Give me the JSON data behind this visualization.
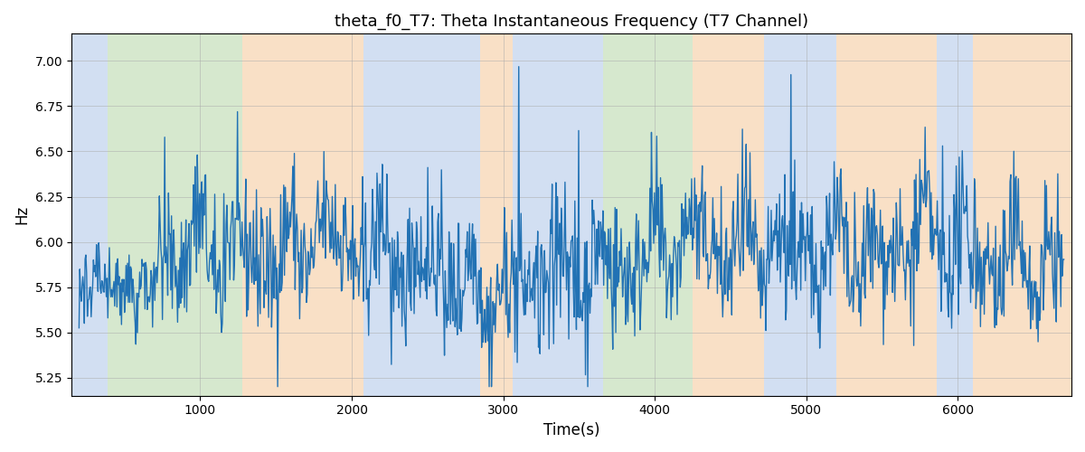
{
  "title": "theta_f0_T7: Theta Instantaneous Frequency (T7 Channel)",
  "xlabel": "Time(s)",
  "ylabel": "Hz",
  "ylim": [
    5.15,
    7.15
  ],
  "xlim": [
    150,
    6750
  ],
  "yticks": [
    5.25,
    5.5,
    5.75,
    6.0,
    6.25,
    6.5,
    6.75,
    7.0
  ],
  "xticks": [
    1000,
    2000,
    3000,
    4000,
    5000,
    6000
  ],
  "line_color": "#2272b4",
  "line_width": 1.0,
  "bg_color": "#ffffff",
  "grid_color": "#aaaaaa",
  "title_fontsize": 13,
  "label_fontsize": 12,
  "bands": [
    {
      "xmin": 150,
      "xmax": 390,
      "color": "#aec6e8",
      "alpha": 0.55
    },
    {
      "xmin": 390,
      "xmax": 1280,
      "color": "#b5d6a7",
      "alpha": 0.55
    },
    {
      "xmin": 1280,
      "xmax": 2080,
      "color": "#f5c897",
      "alpha": 0.55
    },
    {
      "xmin": 2080,
      "xmax": 2850,
      "color": "#aec6e8",
      "alpha": 0.55
    },
    {
      "xmin": 2850,
      "xmax": 3060,
      "color": "#f5c897",
      "alpha": 0.55
    },
    {
      "xmin": 3060,
      "xmax": 3420,
      "color": "#aec6e8",
      "alpha": 0.55
    },
    {
      "xmin": 3420,
      "xmax": 3550,
      "color": "#aec6e8",
      "alpha": 0.55
    },
    {
      "xmin": 3550,
      "xmax": 3660,
      "color": "#aec6e8",
      "alpha": 0.55
    },
    {
      "xmin": 3660,
      "xmax": 4250,
      "color": "#b5d6a7",
      "alpha": 0.55
    },
    {
      "xmin": 4250,
      "xmax": 4720,
      "color": "#f5c897",
      "alpha": 0.55
    },
    {
      "xmin": 4720,
      "xmax": 5200,
      "color": "#aec6e8",
      "alpha": 0.55
    },
    {
      "xmin": 5200,
      "xmax": 5860,
      "color": "#f5c897",
      "alpha": 0.55
    },
    {
      "xmin": 5860,
      "xmax": 6100,
      "color": "#aec6e8",
      "alpha": 0.55
    },
    {
      "xmin": 6100,
      "xmax": 6750,
      "color": "#f5c897",
      "alpha": 0.55
    }
  ],
  "seed": 42,
  "n_points": 1300,
  "x_start": 200,
  "x_end": 6700,
  "base_freq": 5.9,
  "noise_std": 0.18
}
